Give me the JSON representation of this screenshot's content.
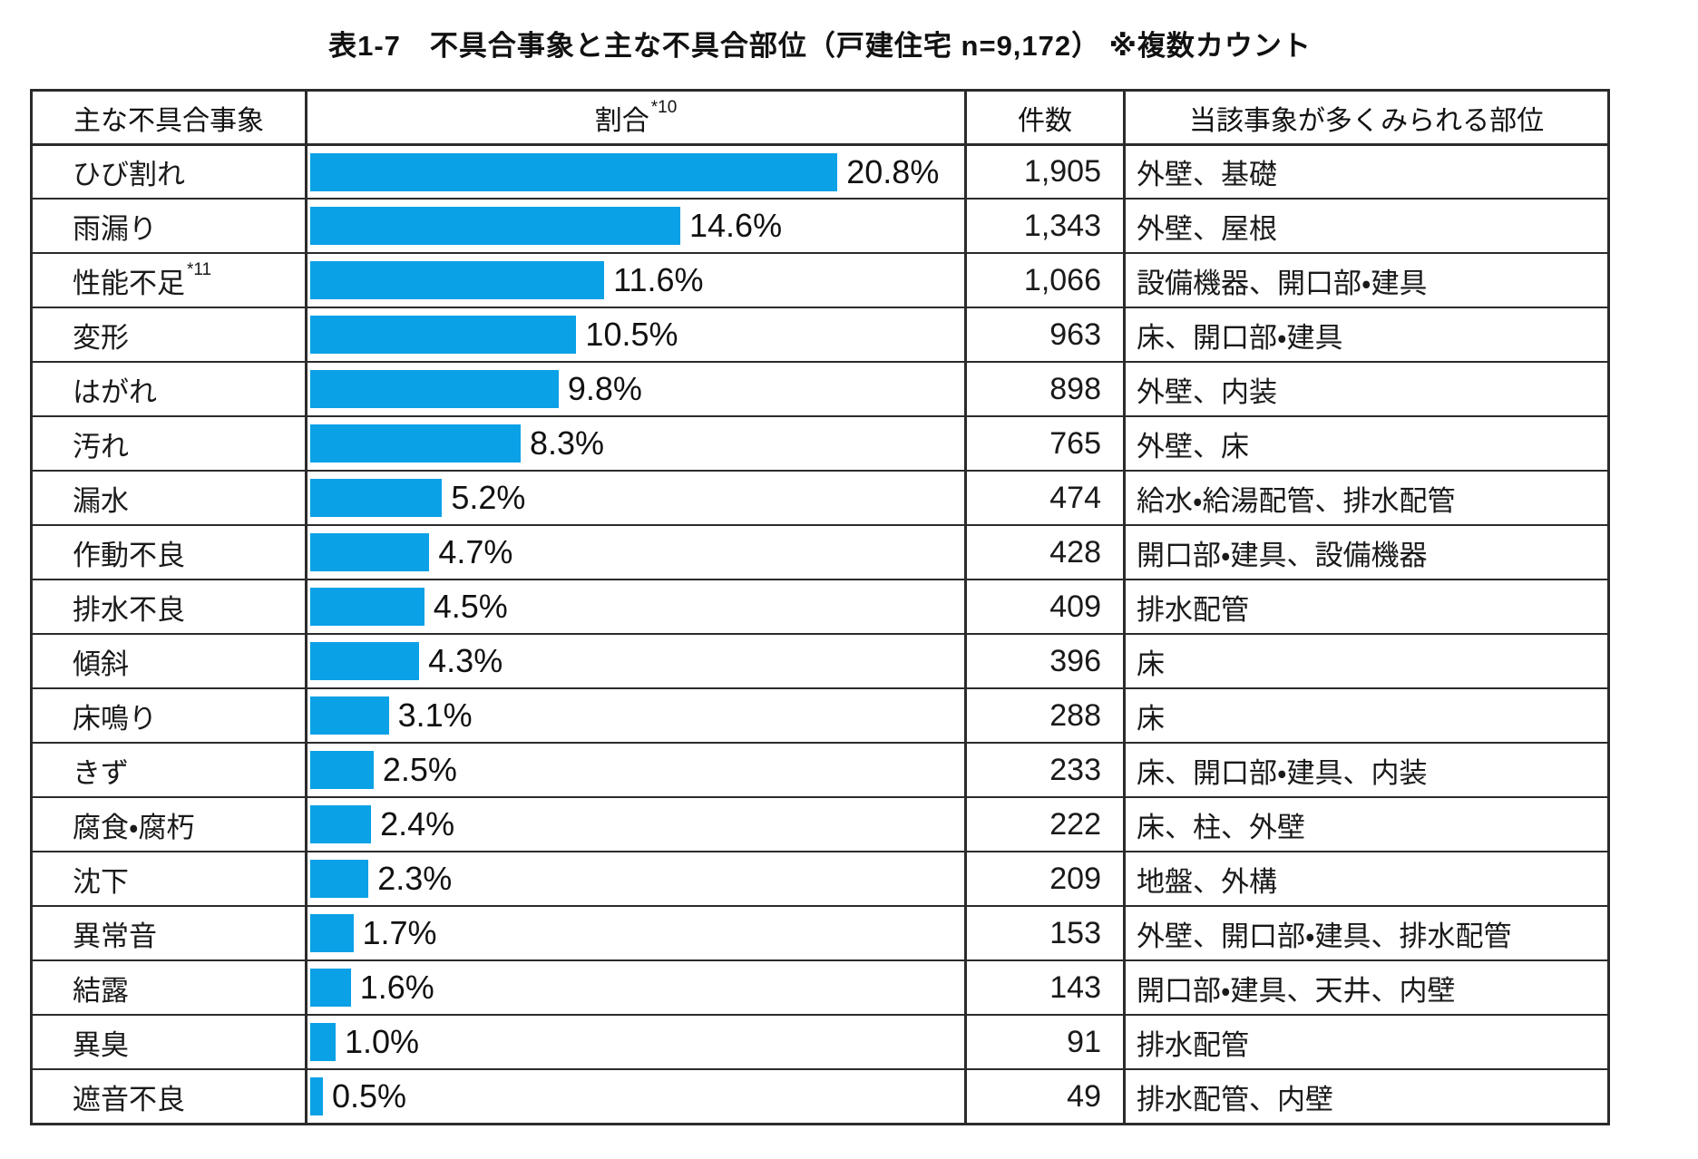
{
  "title": "表1-7　不具合事象と主な不具合部位（戸建住宅 n=9,172） ※複数カウント",
  "header": {
    "event": "主な不具合事象",
    "ratio": "割合",
    "ratio_sup": "*10",
    "count": "件数",
    "parts": "当該事象が多くみられる部位"
  },
  "colors": {
    "bar": "#0aa1e6",
    "border": "#2b2b2b",
    "text": "#1a1a1a"
  },
  "chart_data": {
    "type": "bar",
    "orientation": "horizontal",
    "unit": "%",
    "value_axis_max": 25.8,
    "bar_color": "#0aa1e6",
    "legend": "none",
    "grid": false,
    "title": "表1-7　不具合事象と主な不具合部位（戸建住宅 n=9,172）※複数カウント",
    "rows": [
      {
        "label": "ひび割れ",
        "sup": "",
        "value": 20.8,
        "value_label": "20.8%",
        "count": "1,905",
        "parts": "外壁、基礎"
      },
      {
        "label": "雨漏り",
        "sup": "",
        "value": 14.6,
        "value_label": "14.6%",
        "count": "1,343",
        "parts": "外壁、屋根"
      },
      {
        "label": "性能不足",
        "sup": "*11",
        "value": 11.6,
        "value_label": "11.6%",
        "count": "1,066",
        "parts": "設備機器、開口部・建具"
      },
      {
        "label": "変形",
        "sup": "",
        "value": 10.5,
        "value_label": "10.5%",
        "count": "963",
        "parts": "床、開口部・建具"
      },
      {
        "label": "はがれ",
        "sup": "",
        "value": 9.8,
        "value_label": "9.8%",
        "count": "898",
        "parts": "外壁、内装"
      },
      {
        "label": "汚れ",
        "sup": "",
        "value": 8.3,
        "value_label": "8.3%",
        "count": "765",
        "parts": "外壁、床"
      },
      {
        "label": "漏水",
        "sup": "",
        "value": 5.2,
        "value_label": "5.2%",
        "count": "474",
        "parts": "給水・給湯配管、排水配管"
      },
      {
        "label": "作動不良",
        "sup": "",
        "value": 4.7,
        "value_label": "4.7%",
        "count": "428",
        "parts": "開口部・建具、設備機器"
      },
      {
        "label": "排水不良",
        "sup": "",
        "value": 4.5,
        "value_label": "4.5%",
        "count": "409",
        "parts": "排水配管"
      },
      {
        "label": "傾斜",
        "sup": "",
        "value": 4.3,
        "value_label": "4.3%",
        "count": "396",
        "parts": "床"
      },
      {
        "label": "床鳴り",
        "sup": "",
        "value": 3.1,
        "value_label": "3.1%",
        "count": "288",
        "parts": "床"
      },
      {
        "label": "きず",
        "sup": "",
        "value": 2.5,
        "value_label": "2.5%",
        "count": "233",
        "parts": "床、開口部・建具、内装"
      },
      {
        "label": "腐食・腐朽",
        "sup": "",
        "value": 2.4,
        "value_label": "2.4%",
        "count": "222",
        "parts": "床、柱、外壁"
      },
      {
        "label": "沈下",
        "sup": "",
        "value": 2.3,
        "value_label": "2.3%",
        "count": "209",
        "parts": "地盤、外構"
      },
      {
        "label": "異常音",
        "sup": "",
        "value": 1.7,
        "value_label": "1.7%",
        "count": "153",
        "parts": "外壁、開口部・建具、排水配管"
      },
      {
        "label": "結露",
        "sup": "",
        "value": 1.6,
        "value_label": "1.6%",
        "count": "143",
        "parts": "開口部・建具、天井、内壁"
      },
      {
        "label": "異臭",
        "sup": "",
        "value": 1.0,
        "value_label": "1.0%",
        "count": "91",
        "parts": "排水配管"
      },
      {
        "label": "遮音不良",
        "sup": "",
        "value": 0.5,
        "value_label": "0.5%",
        "count": "49",
        "parts": "排水配管、内壁"
      }
    ]
  }
}
